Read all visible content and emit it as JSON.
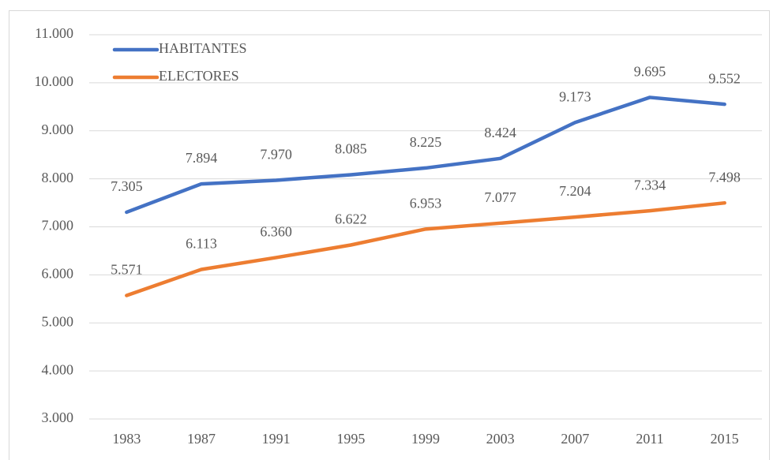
{
  "chart_data": {
    "type": "line",
    "categories": [
      "1983",
      "1987",
      "1991",
      "1995",
      "1999",
      "2003",
      "2007",
      "2011",
      "2015"
    ],
    "series": [
      {
        "name": "HABITANTES",
        "color": "#4472c4",
        "values": [
          7305,
          7894,
          7970,
          8085,
          8225,
          8424,
          9173,
          9695,
          9552
        ],
        "value_labels": [
          "7.305",
          "7.894",
          "7.970",
          "8.085",
          "8.225",
          "8.424",
          "9.173",
          "9.695",
          "9.552"
        ]
      },
      {
        "name": "ELECTORES",
        "color": "#ed7d31",
        "values": [
          5571,
          6113,
          6360,
          6622,
          6953,
          7077,
          7204,
          7334,
          7498
        ],
        "value_labels": [
          "5.571",
          "6.113",
          "6.360",
          "6.622",
          "6.953",
          "7.077",
          "7.204",
          "7.334",
          "7.498"
        ]
      }
    ],
    "ylim": [
      3000,
      11000
    ],
    "yticks": [
      {
        "value": 3000,
        "label": "3.000"
      },
      {
        "value": 4000,
        "label": "4.000"
      },
      {
        "value": 5000,
        "label": "5.000"
      },
      {
        "value": 6000,
        "label": "6.000"
      },
      {
        "value": 7000,
        "label": "7.000"
      },
      {
        "value": 8000,
        "label": "8.000"
      },
      {
        "value": 9000,
        "label": "9.000"
      },
      {
        "value": 10000,
        "label": "10.000"
      },
      {
        "value": 11000,
        "label": "11.000"
      }
    ],
    "grid": true,
    "legend": "top-left"
  }
}
